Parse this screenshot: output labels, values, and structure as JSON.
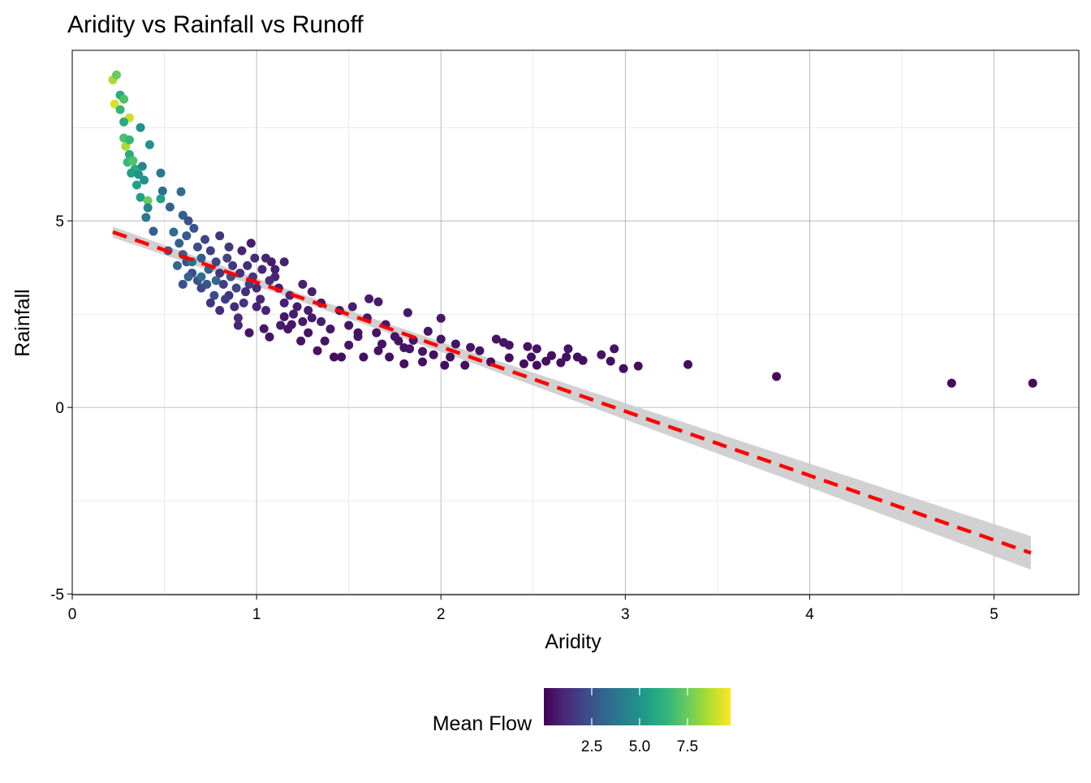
{
  "chart_data": {
    "type": "scatter",
    "title": "Aridity vs Rainfall vs Runoff",
    "xlabel": "Aridity",
    "ylabel": "Rainfall",
    "xlim": [
      0,
      5.46
    ],
    "ylim": [
      -5.02,
      9.57
    ],
    "xticks": [
      0,
      1,
      2,
      3,
      4,
      5
    ],
    "xtick_labels": [
      "0",
      "1",
      "2",
      "3",
      "4",
      "5"
    ],
    "yticks": [
      -5,
      0,
      5
    ],
    "ytick_labels": [
      "-5",
      "0",
      "5"
    ],
    "grid": true,
    "legend": {
      "title": "Mean Flow",
      "placement": "bottom",
      "range": [
        0,
        9.75
      ],
      "ticks": [
        2.5,
        5.0,
        7.5
      ],
      "tick_labels": [
        "2.5",
        "5.0",
        "7.5"
      ],
      "colormap": "viridis"
    },
    "colors": {
      "fit_line": "#ff0000",
      "band": "#cccccc",
      "grid": "#bbbbbb"
    },
    "fit": {
      "method": "linear",
      "points": [
        [
          0.22,
          4.7,
          4.553,
          4.847
        ],
        [
          1.2,
          3.01,
          2.91,
          3.11
        ],
        [
          2.2,
          1.28,
          1.135,
          1.425
        ],
        [
          3.2,
          -0.45,
          -0.69,
          -0.21
        ],
        [
          4.2,
          -2.17,
          -2.51,
          -1.83
        ],
        [
          5.2,
          -3.9,
          -4.35,
          -3.45
        ]
      ]
    },
    "points": [
      [
        0.22,
        8.78,
        8.5
      ],
      [
        0.24,
        8.91,
        7.5
      ],
      [
        0.23,
        8.13,
        9.2
      ],
      [
        0.26,
        8.37,
        6.0
      ],
      [
        0.28,
        8.26,
        7.0
      ],
      [
        0.31,
        7.76,
        9.0
      ],
      [
        0.26,
        7.98,
        6.5
      ],
      [
        0.28,
        7.65,
        6.0
      ],
      [
        0.37,
        7.5,
        5.0
      ],
      [
        0.28,
        7.22,
        7.0
      ],
      [
        0.29,
        7.0,
        8.5
      ],
      [
        0.31,
        7.17,
        6.5
      ],
      [
        0.42,
        7.04,
        5.0
      ],
      [
        0.31,
        6.78,
        6.0
      ],
      [
        0.3,
        6.57,
        6.5
      ],
      [
        0.33,
        6.61,
        7.0
      ],
      [
        0.34,
        6.39,
        6.0
      ],
      [
        0.32,
        6.28,
        5.5
      ],
      [
        0.38,
        6.46,
        4.5
      ],
      [
        0.36,
        6.24,
        5.0
      ],
      [
        0.48,
        6.28,
        4.0
      ],
      [
        0.35,
        5.96,
        5.5
      ],
      [
        0.39,
        6.09,
        5.0
      ],
      [
        0.37,
        5.63,
        5.5
      ],
      [
        0.41,
        5.54,
        7.5
      ],
      [
        0.49,
        5.8,
        3.5
      ],
      [
        0.59,
        5.78,
        3.5
      ],
      [
        0.4,
        5.09,
        4.0
      ],
      [
        0.41,
        5.35,
        4.5
      ],
      [
        0.48,
        5.59,
        5.5
      ],
      [
        0.44,
        4.72,
        3.0
      ],
      [
        0.53,
        5.37,
        3.0
      ],
      [
        0.6,
        5.15,
        3.0
      ],
      [
        0.63,
        5.0,
        2.5
      ],
      [
        0.55,
        4.7,
        3.5
      ],
      [
        0.58,
        4.4,
        3.0
      ],
      [
        0.6,
        4.1,
        2.8
      ],
      [
        0.62,
        3.9,
        2.5
      ],
      [
        0.65,
        3.6,
        2.2
      ],
      [
        0.68,
        3.4,
        2.5
      ],
      [
        0.7,
        3.2,
        2.0
      ],
      [
        0.72,
        4.5,
        2.0
      ],
      [
        0.75,
        4.2,
        1.8
      ],
      [
        0.78,
        3.9,
        2.0
      ],
      [
        0.8,
        3.6,
        1.5
      ],
      [
        0.82,
        3.3,
        1.8
      ],
      [
        0.85,
        3.0,
        1.5
      ],
      [
        0.88,
        2.7,
        1.2
      ],
      [
        0.9,
        2.4,
        1.2
      ],
      [
        0.92,
        4.2,
        1.0
      ],
      [
        0.95,
        3.8,
        1.2
      ],
      [
        0.98,
        3.5,
        1.5
      ],
      [
        1.0,
        3.2,
        1.2
      ],
      [
        1.02,
        2.9,
        1.0
      ],
      [
        1.05,
        2.6,
        1.0
      ],
      [
        1.08,
        3.9,
        0.8
      ],
      [
        1.1,
        3.5,
        1.0
      ],
      [
        1.12,
        3.2,
        0.8
      ],
      [
        1.15,
        2.8,
        0.9
      ],
      [
        1.18,
        3.0,
        1.1
      ],
      [
        1.2,
        2.5,
        0.8
      ],
      [
        1.22,
        2.7,
        0.8
      ],
      [
        1.25,
        2.3,
        0.7
      ],
      [
        1.28,
        2.6,
        0.8
      ],
      [
        0.52,
        4.2,
        3.0
      ],
      [
        0.57,
        3.8,
        3.2
      ],
      [
        0.63,
        3.5,
        3.0
      ],
      [
        0.66,
        4.8,
        2.5
      ],
      [
        0.7,
        4.0,
        2.8
      ],
      [
        0.74,
        3.7,
        3.0
      ],
      [
        0.77,
        3.0,
        2.2
      ],
      [
        0.8,
        4.6,
        1.5
      ],
      [
        0.84,
        4.0,
        2.0
      ],
      [
        0.86,
        3.5,
        2.5
      ],
      [
        0.89,
        3.2,
        2.0
      ],
      [
        0.93,
        2.8,
        1.5
      ],
      [
        0.96,
        3.3,
        1.8
      ],
      [
        0.99,
        4.0,
        1.2
      ],
      [
        0.97,
        4.4,
        0.8
      ],
      [
        1.03,
        3.7,
        1.0
      ],
      [
        1.07,
        3.4,
        1.2
      ],
      [
        1.0,
        2.7,
        1.0
      ],
      [
        0.9,
        2.2,
        1.0
      ],
      [
        0.96,
        2.0,
        0.8
      ],
      [
        0.8,
        2.6,
        1.3
      ],
      [
        0.75,
        2.8,
        1.5
      ],
      [
        0.7,
        3.5,
        3.5
      ],
      [
        0.65,
        3.9,
        3.8
      ],
      [
        0.6,
        3.3,
        2.5
      ],
      [
        0.62,
        4.6,
        2.8
      ],
      [
        0.68,
        4.3,
        2.3
      ],
      [
        0.73,
        3.3,
        2.6
      ],
      [
        0.78,
        3.4,
        3.2
      ],
      [
        0.83,
        2.9,
        1.8
      ],
      [
        0.87,
        3.8,
        1.6
      ],
      [
        0.91,
        3.6,
        1.4
      ],
      [
        0.94,
        3.1,
        1.3
      ],
      [
        1.13,
        2.2,
        0.7
      ],
      [
        1.17,
        2.1,
        0.6
      ],
      [
        1.3,
        2.4,
        0.7
      ],
      [
        1.35,
        2.3,
        0.8
      ],
      [
        1.4,
        2.1,
        0.6
      ],
      [
        1.45,
        2.6,
        0.7
      ],
      [
        1.5,
        2.2,
        0.6
      ],
      [
        1.52,
        2.7,
        0.8
      ],
      [
        1.55,
        1.9,
        0.6
      ],
      [
        1.6,
        2.4,
        0.6
      ],
      [
        1.65,
        2.0,
        0.5
      ],
      [
        1.68,
        1.7,
        0.5
      ],
      [
        1.75,
        1.9,
        0.5
      ],
      [
        1.8,
        1.6,
        0.5
      ],
      [
        1.85,
        1.8,
        0.5
      ],
      [
        1.9,
        1.5,
        0.5
      ],
      [
        1.3,
        3.1,
        0.8
      ],
      [
        1.35,
        2.8,
        0.7
      ],
      [
        1.25,
        3.3,
        0.9
      ],
      [
        1.1,
        3.7,
        0.9
      ],
      [
        1.05,
        4.0,
        1.0
      ],
      [
        1.15,
        3.9,
        0.9
      ],
      [
        0.85,
        4.3,
        1.6
      ],
      [
        5.21,
        0.65,
        0.3
      ],
      [
        4.77,
        0.65,
        0.3
      ],
      [
        3.82,
        0.83,
        0.3
      ],
      [
        3.34,
        1.15,
        0.4
      ],
      [
        3.07,
        1.11,
        0.4
      ],
      [
        2.99,
        1.04,
        0.4
      ],
      [
        2.94,
        1.57,
        0.5
      ],
      [
        2.87,
        1.41,
        0.5
      ],
      [
        2.92,
        1.24,
        0.4
      ],
      [
        2.77,
        1.26,
        0.4
      ],
      [
        2.74,
        1.35,
        0.4
      ],
      [
        2.69,
        1.57,
        0.5
      ],
      [
        2.68,
        1.35,
        0.4
      ],
      [
        2.65,
        1.2,
        0.4
      ],
      [
        2.6,
        1.39,
        0.4
      ],
      [
        2.57,
        1.24,
        0.4
      ],
      [
        2.52,
        1.57,
        0.5
      ],
      [
        2.52,
        1.13,
        0.4
      ],
      [
        2.49,
        1.35,
        0.4
      ],
      [
        2.47,
        1.63,
        0.5
      ],
      [
        2.45,
        1.17,
        0.4
      ],
      [
        2.37,
        1.67,
        0.5
      ],
      [
        2.37,
        1.33,
        0.4
      ],
      [
        2.34,
        1.74,
        0.5
      ],
      [
        2.3,
        1.83,
        0.5
      ],
      [
        2.27,
        1.22,
        0.4
      ],
      [
        2.21,
        1.52,
        0.5
      ],
      [
        2.16,
        1.61,
        0.5
      ],
      [
        2.13,
        1.13,
        0.4
      ],
      [
        2.08,
        1.7,
        0.5
      ],
      [
        2.05,
        1.35,
        0.4
      ],
      [
        2.02,
        1.13,
        0.4
      ],
      [
        2.0,
        2.39,
        0.6
      ],
      [
        2.0,
        1.83,
        0.5
      ],
      [
        1.96,
        1.41,
        0.4
      ],
      [
        1.93,
        2.04,
        0.5
      ],
      [
        1.9,
        1.22,
        0.4
      ],
      [
        1.82,
        2.54,
        0.6
      ],
      [
        1.83,
        1.57,
        0.5
      ],
      [
        1.8,
        1.17,
        0.4
      ],
      [
        1.77,
        1.78,
        0.5
      ],
      [
        1.72,
        1.35,
        0.4
      ],
      [
        1.7,
        2.22,
        0.6
      ],
      [
        1.66,
        1.52,
        0.5
      ],
      [
        1.66,
        2.83,
        0.7
      ],
      [
        1.61,
        2.91,
        0.7
      ],
      [
        1.58,
        1.35,
        0.4
      ],
      [
        1.55,
        2.0,
        0.5
      ],
      [
        1.5,
        1.67,
        0.5
      ],
      [
        1.46,
        1.35,
        0.4
      ],
      [
        1.42,
        1.35,
        0.4
      ],
      [
        1.37,
        1.78,
        0.5
      ],
      [
        1.33,
        1.52,
        0.5
      ],
      [
        1.28,
        2.0,
        0.5
      ],
      [
        1.24,
        1.78,
        0.5
      ],
      [
        1.19,
        2.22,
        0.6
      ],
      [
        1.15,
        2.43,
        0.6
      ],
      [
        1.07,
        1.89,
        0.5
      ],
      [
        1.04,
        2.11,
        0.6
      ],
      [
        0.96,
        2.0,
        0.5
      ]
    ]
  }
}
